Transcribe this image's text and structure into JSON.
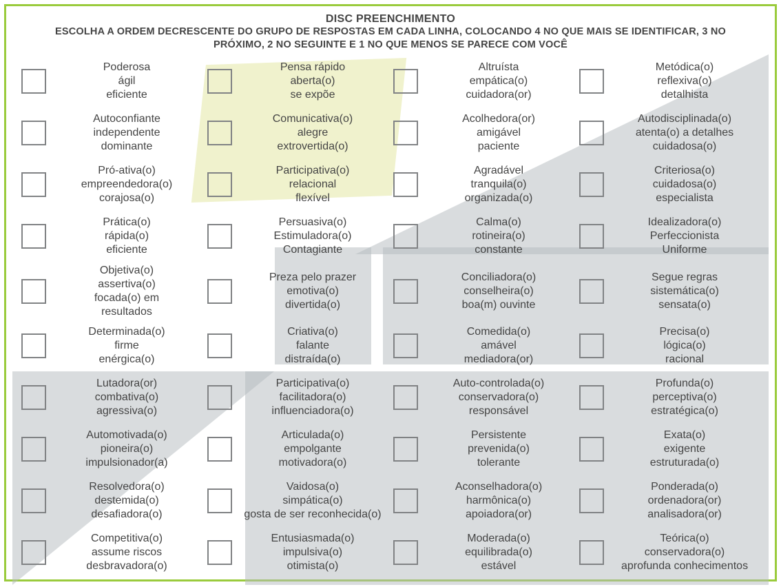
{
  "colors": {
    "border": "#9acb3c",
    "text": "#444444",
    "checkbox_border": "#808284",
    "bg": "#ffffff",
    "bg_yellow": "#f0f2cd",
    "bg_grey": "rgba(180,185,190,0.5)"
  },
  "title": "DISC PREENCHIMENTO",
  "subtitle_line1": "ESCOLHA A ORDEM DECRESCENTE DO GRUPO DE RESPOSTAS EM CADA LINHA, COLOCANDO 4 NO QUE MAIS SE IDENTIFICAR, 3 NO",
  "subtitle_line2": "PRÓXIMO, 2 NO SEGUINTE E 1 NO QUE MENOS SE PARECE COM VOCÊ",
  "rows": [
    [
      [
        "Poderosa",
        "ágil",
        "eficiente"
      ],
      [
        "Pensa rápido",
        "aberta(o)",
        "se expõe"
      ],
      [
        "Altruísta",
        "empática(o)",
        "cuidadora(or)"
      ],
      [
        "Metódica(o)",
        "reflexiva(o)",
        "detalhista"
      ]
    ],
    [
      [
        "Autoconfiante",
        "independente",
        "dominante"
      ],
      [
        "Comunicativa(o)",
        "alegre",
        "extrovertida(o)"
      ],
      [
        "Acolhedora(or)",
        "amigável",
        "paciente"
      ],
      [
        "Autodisciplinada(o)",
        "atenta(o) a detalhes",
        "cuidadosa(o)"
      ]
    ],
    [
      [
        "Pró-ativa(o)",
        "empreendedora(o)",
        "corajosa(o)"
      ],
      [
        "Participativa(o)",
        "relacional",
        "flexível"
      ],
      [
        "Agradável",
        "tranquila(o)",
        "organizada(o)"
      ],
      [
        "Criteriosa(o)",
        "cuidadosa(o)",
        "especialista"
      ]
    ],
    [
      [
        "Prática(o)",
        "rápida(o)",
        "eficiente"
      ],
      [
        "Persuasiva(o)",
        "Estimuladora(o)",
        "Contagiante"
      ],
      [
        "Calma(o)",
        "rotineira(o)",
        "constante"
      ],
      [
        "Idealizadora(o)",
        "Perfeccionista",
        "Uniforme"
      ]
    ],
    [
      [
        "Objetiva(o)",
        "assertiva(o)",
        "focada(o) em",
        "resultados"
      ],
      [
        "Preza pelo prazer",
        "emotiva(o)",
        "divertida(o)"
      ],
      [
        "Conciliadora(o)",
        "conselheira(o)",
        "boa(m) ouvinte"
      ],
      [
        "Segue regras",
        "sistemática(o)",
        "sensata(o)"
      ]
    ],
    [
      [
        "Determinada(o)",
        "firme",
        "enérgica(o)"
      ],
      [
        "Criativa(o)",
        "falante",
        "distraída(o)"
      ],
      [
        "Comedida(o)",
        "amável",
        "mediadora(or)"
      ],
      [
        "Precisa(o)",
        "lógica(o)",
        "racional"
      ]
    ],
    [
      [
        "Lutadora(or)",
        "combativa(o)",
        "agressiva(o)"
      ],
      [
        "Participativa(o)",
        "facilitadora(o)",
        "influenciadora(o)"
      ],
      [
        "Auto-controlada(o)",
        "conservadora(o)",
        "responsável"
      ],
      [
        "Profunda(o)",
        "perceptiva(o)",
        "estratégica(o)"
      ]
    ],
    [
      [
        "Automotivada(o)",
        "pioneira(o)",
        "impulsionador(a)"
      ],
      [
        "Articulada(o)",
        "empolgante",
        "motivadora(o)"
      ],
      [
        "Persistente",
        "prevenida(o)",
        "tolerante"
      ],
      [
        "Exata(o)",
        "exigente",
        "estruturada(o)"
      ]
    ],
    [
      [
        "Resolvedora(o)",
        "destemida(o)",
        "desafiadora(o)"
      ],
      [
        "Vaidosa(o)",
        "simpática(o)",
        "gosta de ser reconhecida(o)"
      ],
      [
        "Aconselhadora(o)",
        "harmônica(o)",
        "apoiadora(or)"
      ],
      [
        "Ponderada(o)",
        "ordenadora(or)",
        "analisadora(or)"
      ]
    ],
    [
      [
        "Competitiva(o)",
        "assume riscos",
        "desbravadora(o)"
      ],
      [
        "Entusiasmada(o)",
        "impulsiva(o)",
        "otimista(o)"
      ],
      [
        "Moderada(o)",
        "equilibrada(o)",
        "estável"
      ],
      [
        "Teórica(o)",
        "conservadora(o)",
        "aprofunda conhecimentos"
      ]
    ]
  ]
}
